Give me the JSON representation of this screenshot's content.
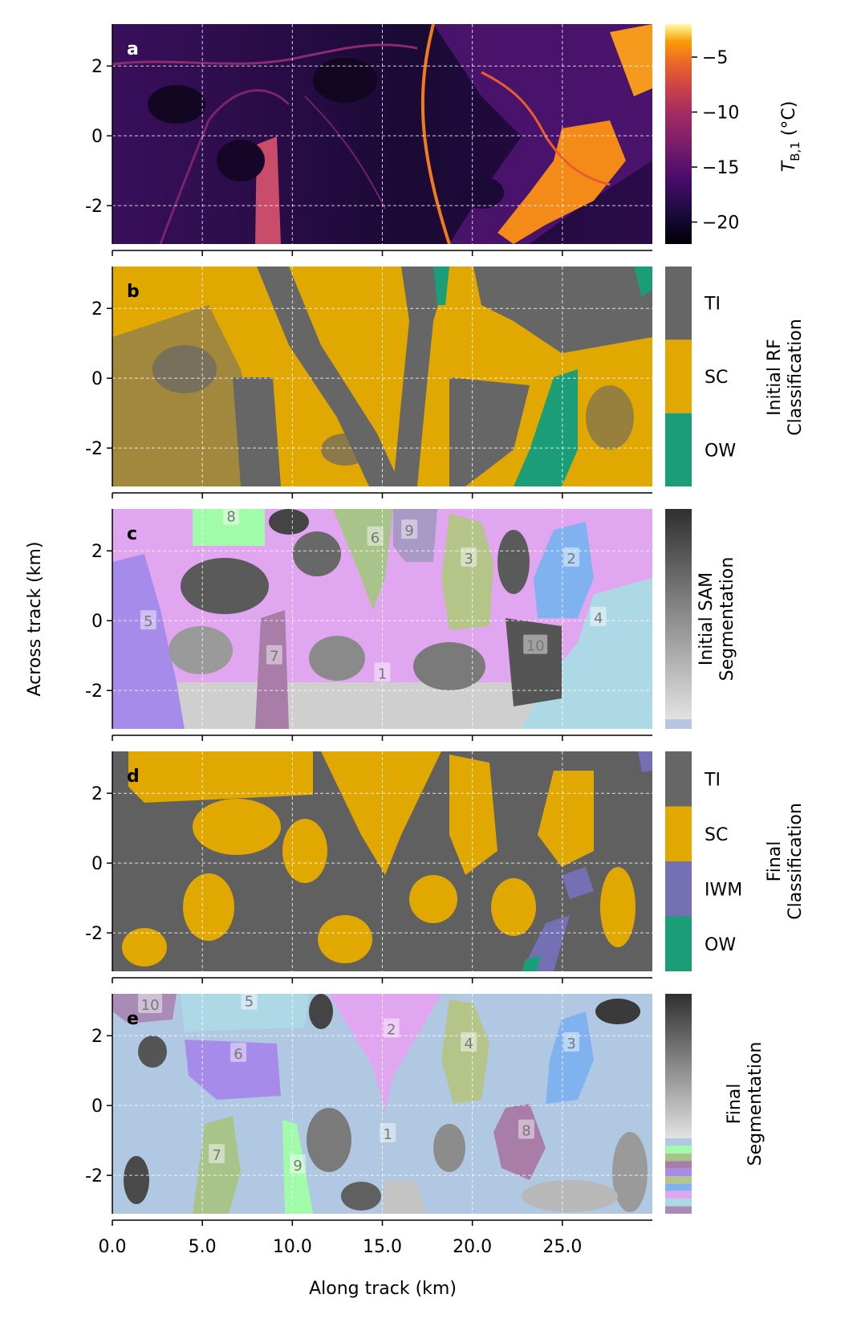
{
  "figure": {
    "ylabel": "Across track (km)",
    "xlabel": "Along track (km)",
    "xticks": [
      "0.0",
      "5.0",
      "10.0",
      "15.0",
      "20.0",
      "25.0"
    ],
    "yticks": [
      "2",
      "0",
      "-2"
    ]
  },
  "chart_data": [
    {
      "type": "heatmap",
      "panel": "a",
      "colorbar": {
        "label": "T_B,1 (°C)",
        "colormap": "inferno",
        "range": [
          -22,
          -2
        ],
        "ticks": [
          "−5",
          "−10",
          "−15",
          "−20"
        ]
      },
      "xlim": [
        0,
        30
      ],
      "ylim": [
        -3.1,
        3.2
      ],
      "grid": true
    },
    {
      "type": "heatmap",
      "panel": "b",
      "colorbar": {
        "label": "Initial RF\nClassification",
        "categories": [
          {
            "name": "TI",
            "color": "#666666"
          },
          {
            "name": "SC",
            "color": "#e0a800"
          },
          {
            "name": "OW",
            "color": "#1b9e77"
          }
        ]
      },
      "xlim": [
        0,
        30
      ],
      "ylim": [
        -3.1,
        3.2
      ],
      "grid": true
    },
    {
      "type": "heatmap",
      "panel": "c",
      "colorbar": {
        "label": "Initial SAM\nSegmentation",
        "colormap": "greys"
      },
      "segment_labels": [
        "1",
        "2",
        "3",
        "4",
        "5",
        "6",
        "7",
        "8",
        "9",
        "10"
      ],
      "xlim": [
        0,
        30
      ],
      "ylim": [
        -3.1,
        3.2
      ],
      "grid": true
    },
    {
      "type": "heatmap",
      "panel": "d",
      "colorbar": {
        "label": "Final\nClassification",
        "categories": [
          {
            "name": "TI",
            "color": "#666666"
          },
          {
            "name": "SC",
            "color": "#e0a800"
          },
          {
            "name": "IWM",
            "color": "#7570b3"
          },
          {
            "name": "OW",
            "color": "#1b9e77"
          }
        ]
      },
      "xlim": [
        0,
        30
      ],
      "ylim": [
        -3.1,
        3.2
      ],
      "grid": true
    },
    {
      "type": "heatmap",
      "panel": "e",
      "colorbar": {
        "label": "Final\nSegmentation",
        "colormap": "greys"
      },
      "segment_labels": [
        "1",
        "2",
        "3",
        "4",
        "5",
        "6",
        "7",
        "8",
        "9",
        "10"
      ],
      "xlim": [
        0,
        30
      ],
      "ylim": [
        -3.1,
        3.2
      ],
      "grid": true
    }
  ]
}
